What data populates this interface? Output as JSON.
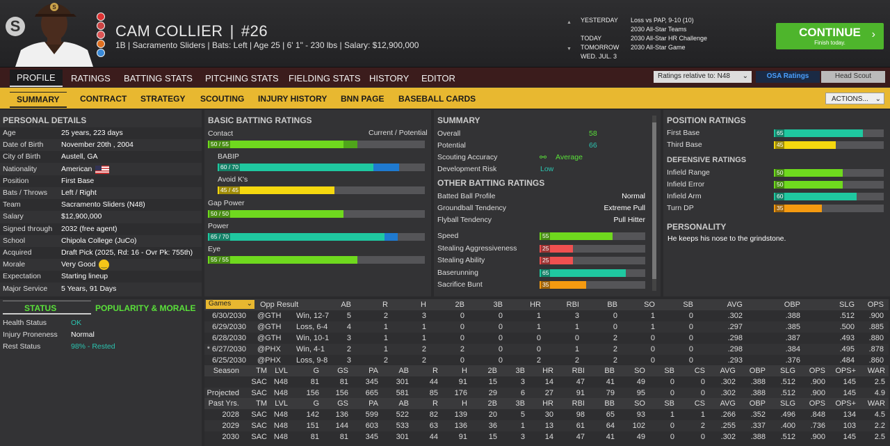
{
  "header": {
    "logo": "S",
    "player_name": "CAM COLLIER",
    "number": "#26",
    "info": "1B | Sacramento Sliders  |  Bats: Left  |  Age 25  |  6' 1\" - 230 lbs  |  Salary: $12,900,000"
  },
  "schedule": [
    {
      "label": "YESTERDAY",
      "text": "Loss vs PAP, 9-10 (10)"
    },
    {
      "label": "",
      "text": "2030 All-Star Teams"
    },
    {
      "label": "TODAY",
      "text": "2030 All-Star HR Challenge"
    },
    {
      "label": "TOMORROW",
      "text": "2030 All-Star Game"
    },
    {
      "label": "WED. JUL. 3",
      "text": ""
    }
  ],
  "continue": {
    "label": "CONTINUE",
    "sub": "Finish today."
  },
  "main_tabs": [
    "PROFILE",
    "RATINGS",
    "BATTING STATS",
    "PITCHING STATS",
    "FIELDING STATS",
    "HISTORY",
    "EDITOR"
  ],
  "ratings_select": "Ratings relative to: N48",
  "osa_ratings": "OSA Ratings",
  "head_scout": "Head Scout",
  "sub_tabs": [
    "SUMMARY",
    "CONTRACT",
    "STRATEGY",
    "SCOUTING",
    "INJURY HISTORY",
    "BNN PAGE",
    "BASEBALL CARDS"
  ],
  "actions": "ACTIONS...",
  "personal": {
    "title": "PERSONAL DETAILS",
    "rows": [
      [
        "Age",
        "25 years, 223 days"
      ],
      [
        "Date of Birth",
        "November 20th , 2004"
      ],
      [
        "City of Birth",
        "Austell, GA"
      ],
      [
        "Nationality",
        "American"
      ],
      [
        "Position",
        "First Base"
      ],
      [
        "Bats / Throws",
        "Left / Right"
      ],
      [
        "Team",
        "Sacramento Sliders (N48)"
      ],
      [
        "Salary",
        "$12,900,000"
      ],
      [
        "Signed through",
        "2032 (free agent)"
      ],
      [
        "School",
        "Chipola College (JuCo)"
      ],
      [
        "Acquired",
        "Draft Pick (2025, Rd: 16 - Ovr Pk: 755th)"
      ],
      [
        "Morale",
        "Very Good"
      ],
      [
        "Expectation",
        "Starting lineup"
      ],
      [
        "Major Service",
        "5 Years, 91 Days"
      ]
    ]
  },
  "status": {
    "title": "STATUS",
    "pop_title": "POPULARITY & MORALE",
    "rows": [
      [
        "Health Status",
        "OK"
      ],
      [
        "Injury Proneness",
        "Normal"
      ],
      [
        "Rest Status",
        "98% - Rested"
      ]
    ]
  },
  "batting": {
    "title": "BASIC BATTING RATINGS",
    "cur_pot": "Current / Potential",
    "bars": [
      {
        "name": "Contact",
        "label": "50 / 55",
        "cur": 50,
        "pot": 55,
        "color": "#6fd91e",
        "potcolor": "#4fa51a",
        "indent": false
      },
      {
        "name": "BABIP",
        "label": "60 / 70",
        "cur": 60,
        "pot": 70,
        "color": "#1fc8a0",
        "potcolor": "#1f7ad0",
        "indent": true
      },
      {
        "name": "Avoid K's",
        "label": "45 / 45",
        "cur": 45,
        "pot": 45,
        "color": "#f5d80f",
        "potcolor": "#f5d80f",
        "indent": true
      },
      {
        "name": "Gap Power",
        "label": "50 / 50",
        "cur": 50,
        "pot": 50,
        "color": "#6fd91e",
        "potcolor": "#6fd91e",
        "indent": false
      },
      {
        "name": "Power",
        "label": "65 / 70",
        "cur": 65,
        "pot": 70,
        "color": "#1fc8a0",
        "potcolor": "#1f7ad0",
        "indent": false
      },
      {
        "name": "Eye",
        "label": "55 / 55",
        "cur": 55,
        "pot": 55,
        "color": "#6fd91e",
        "potcolor": "#6fd91e",
        "indent": false
      }
    ]
  },
  "summary": {
    "title": "SUMMARY",
    "rows": [
      [
        "Overall",
        "58"
      ],
      [
        "Potential",
        "66"
      ],
      [
        "Scouting Accuracy",
        "Average"
      ],
      [
        "Development Risk",
        "Low"
      ]
    ],
    "other_title": "OTHER BATTING RATINGS",
    "other": [
      [
        "Batted Ball Profile",
        "Normal"
      ],
      [
        "Groundball Tendency",
        "Extreme Pull"
      ],
      [
        "Flyball Tendency",
        "Pull Hitter"
      ]
    ],
    "bars": [
      {
        "name": "Speed",
        "v": 55,
        "color": "#6fd91e"
      },
      {
        "name": "Stealing Aggressiveness",
        "v": 25,
        "color": "#f05050"
      },
      {
        "name": "Stealing Ability",
        "v": 25,
        "color": "#f05050"
      },
      {
        "name": "Baserunning",
        "v": 65,
        "color": "#1fc8a0"
      },
      {
        "name": "Sacrifice Bunt",
        "v": 35,
        "color": "#f59a10"
      }
    ]
  },
  "position": {
    "title": "POSITION RATINGS",
    "bars": [
      {
        "name": "First Base",
        "v": 65,
        "color": "#1fc8a0"
      },
      {
        "name": "Third Base",
        "v": 45,
        "color": "#f5d80f"
      }
    ],
    "def_title": "DEFENSIVE RATINGS",
    "def": [
      {
        "name": "Infield Range",
        "v": 50,
        "color": "#6fd91e"
      },
      {
        "name": "Infield Error",
        "v": 50,
        "color": "#6fd91e"
      },
      {
        "name": "Infield Arm",
        "v": 60,
        "color": "#1fc8a0"
      },
      {
        "name": "Turn DP",
        "v": 35,
        "color": "#f59a10"
      }
    ],
    "pers_title": "PERSONALITY",
    "pers_text": "He keeps his nose to the grindstone."
  },
  "games": {
    "select": "Games",
    "cols": [
      "Opp",
      "Result",
      "AB",
      "R",
      "H",
      "2B",
      "3B",
      "HR",
      "RBI",
      "BB",
      "SO",
      "SB",
      "AVG",
      "OBP",
      "SLG",
      "OPS"
    ],
    "rows": [
      [
        "6/30/2030",
        "@GTH",
        "Win, 12-7",
        "5",
        "2",
        "3",
        "0",
        "0",
        "1",
        "3",
        "0",
        "1",
        "0",
        ".302",
        ".388",
        ".512",
        ".900"
      ],
      [
        "6/29/2030",
        "@GTH",
        "Loss, 6-4",
        "4",
        "1",
        "1",
        "0",
        "0",
        "1",
        "1",
        "0",
        "1",
        "0",
        ".297",
        ".385",
        ".500",
        ".885"
      ],
      [
        "6/28/2030",
        "@GTH",
        "Win, 10-1",
        "3",
        "1",
        "1",
        "0",
        "0",
        "0",
        "0",
        "2",
        "0",
        "0",
        ".298",
        ".387",
        ".493",
        ".880"
      ],
      [
        "* 6/27/2030",
        "@PHX",
        "Win, 4-1",
        "2",
        "1",
        "2",
        "2",
        "0",
        "0",
        "1",
        "2",
        "0",
        "0",
        ".298",
        ".384",
        ".495",
        ".878"
      ],
      [
        "6/25/2030",
        "@PHX",
        "Loss, 9-8",
        "3",
        "2",
        "2",
        "0",
        "0",
        "2",
        "2",
        "2",
        "0",
        "0",
        ".293",
        ".376",
        ".484",
        ".860"
      ]
    ]
  },
  "season": {
    "cols": [
      "Season",
      "TM",
      "LVL",
      "G",
      "GS",
      "PA",
      "AB",
      "R",
      "H",
      "2B",
      "3B",
      "HR",
      "RBI",
      "BB",
      "SO",
      "SB",
      "CS",
      "AVG",
      "OBP",
      "SLG",
      "OPS",
      "OPS+",
      "WAR"
    ],
    "rows": [
      [
        "",
        "SAC",
        "N48",
        "81",
        "81",
        "345",
        "301",
        "44",
        "91",
        "15",
        "3",
        "14",
        "47",
        "41",
        "49",
        "0",
        "0",
        ".302",
        ".388",
        ".512",
        ".900",
        "145",
        "2.5"
      ],
      [
        "Projected",
        "SAC",
        "N48",
        "156",
        "156",
        "665",
        "581",
        "85",
        "176",
        "29",
        "6",
        "27",
        "91",
        "79",
        "95",
        "0",
        "0",
        ".302",
        ".388",
        ".512",
        ".900",
        "145",
        "4.9"
      ]
    ],
    "past_cols": [
      "Past Yrs.",
      "TM",
      "LVL",
      "G",
      "GS",
      "PA",
      "AB",
      "R",
      "H",
      "2B",
      "3B",
      "HR",
      "RBI",
      "BB",
      "SO",
      "SB",
      "CS",
      "AVG",
      "OBP",
      "SLG",
      "OPS",
      "OPS+",
      "WAR"
    ],
    "past": [
      [
        "2028",
        "SAC",
        "N48",
        "142",
        "136",
        "599",
        "522",
        "82",
        "139",
        "20",
        "5",
        "30",
        "98",
        "65",
        "93",
        "1",
        "1",
        ".266",
        ".352",
        ".496",
        ".848",
        "134",
        "4.5"
      ],
      [
        "2029",
        "SAC",
        "N48",
        "151",
        "144",
        "603",
        "533",
        "63",
        "136",
        "36",
        "1",
        "13",
        "61",
        "64",
        "102",
        "0",
        "2",
        ".255",
        ".337",
        ".400",
        ".736",
        "103",
        "2.2"
      ],
      [
        "2030",
        "SAC",
        "N48",
        "81",
        "81",
        "345",
        "301",
        "44",
        "91",
        "15",
        "3",
        "14",
        "47",
        "41",
        "49",
        "0",
        "0",
        ".302",
        ".388",
        ".512",
        ".900",
        "145",
        "2.5"
      ]
    ]
  }
}
